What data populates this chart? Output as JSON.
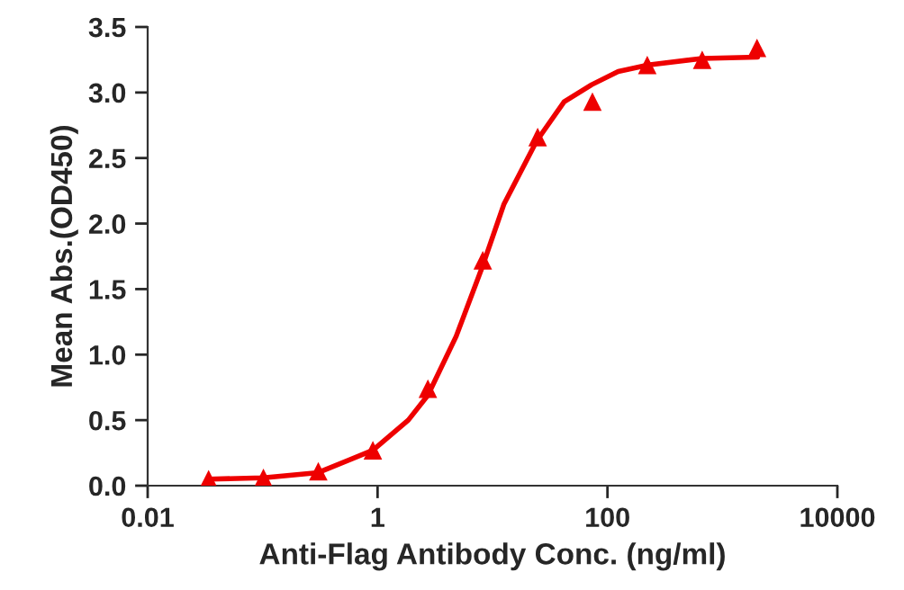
{
  "chart_data": {
    "type": "scatter",
    "xlabel": "Anti-Flag Antibody Conc. (ng/ml)",
    "ylabel": "Mean Abs.(OD450)",
    "log": "x",
    "xlim": [
      0.01,
      10000
    ],
    "xticks": [
      {
        "value": 0.01,
        "label": "0.01"
      },
      {
        "value": 1,
        "label": "1"
      },
      {
        "value": 100,
        "label": "100"
      },
      {
        "value": 10000,
        "label": "10000"
      }
    ],
    "ylim": [
      0,
      3.5
    ],
    "yticks": [
      {
        "value": 0,
        "label": "0.0"
      },
      {
        "value": 0.5,
        "label": "0.5"
      },
      {
        "value": 1,
        "label": "1.0"
      },
      {
        "value": 1.5,
        "label": "1.5"
      },
      {
        "value": 2,
        "label": "2.0"
      },
      {
        "value": 2.5,
        "label": "2.5"
      },
      {
        "value": 3,
        "label": "3.0"
      },
      {
        "value": 3.5,
        "label": "3.5"
      }
    ],
    "grid": false,
    "marker": "triangle",
    "series": [
      {
        "color": "#ee0000",
        "x": [
          0.0339,
          0.1016,
          0.305,
          0.91,
          2.74,
          8.23,
          24.7,
          74,
          222,
          667,
          2000
        ],
        "values": [
          0.05,
          0.06,
          0.11,
          0.27,
          0.74,
          1.72,
          2.66,
          2.93,
          3.21,
          3.25,
          3.34
        ]
      },
      {
        "type": "line",
        "color": "#ee0000",
        "marker": "none",
        "x": [
          0.0339,
          0.1016,
          0.305,
          0.91,
          1.85,
          2.74,
          4.83,
          8.0,
          12.6,
          24.2,
          42,
          73,
          124,
          226,
          668,
          2020
        ],
        "values": [
          0.05,
          0.06,
          0.1,
          0.27,
          0.5,
          0.69,
          1.14,
          1.65,
          2.15,
          2.63,
          2.93,
          3.06,
          3.16,
          3.21,
          3.26,
          3.27
        ]
      }
    ]
  }
}
